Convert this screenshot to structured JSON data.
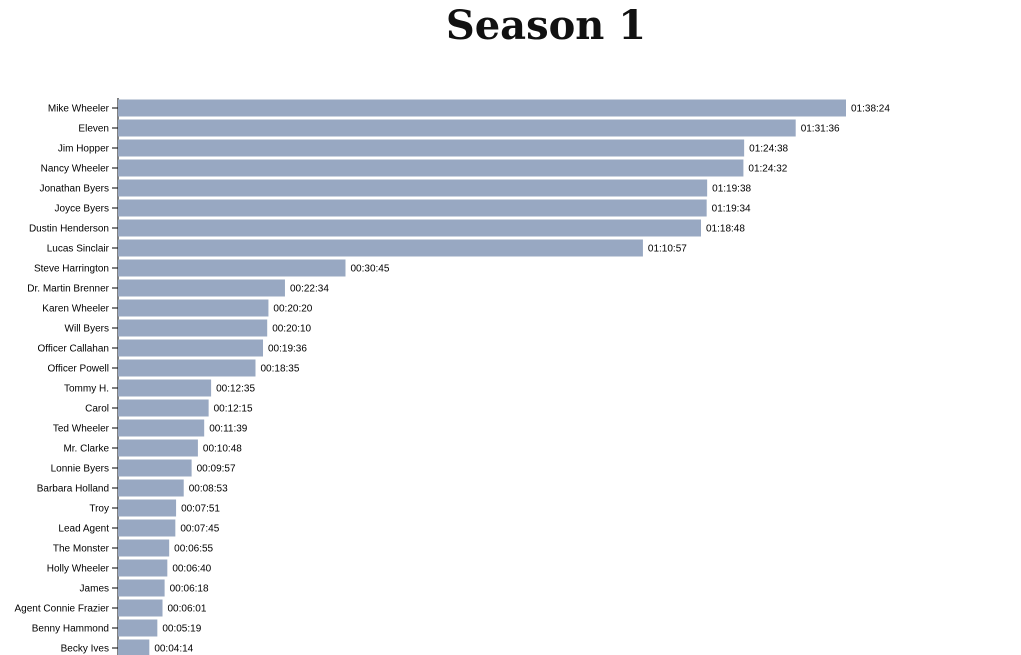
{
  "colors": {
    "bar": "#98a8c2",
    "axis": "#000000"
  },
  "chart_data": {
    "type": "bar",
    "orientation": "horizontal",
    "title": "Season 1",
    "value_unit": "hh:mm:ss",
    "categories": [
      "Mike Wheeler",
      "Eleven",
      "Jim Hopper",
      "Nancy Wheeler",
      "Jonathan Byers",
      "Joyce Byers",
      "Dustin Henderson",
      "Lucas Sinclair",
      "Steve Harrington",
      "Dr. Martin Brenner",
      "Karen Wheeler",
      "Will Byers",
      "Officer Callahan",
      "Officer Powell",
      "Tommy H.",
      "Carol",
      "Ted Wheeler",
      "Mr. Clarke",
      "Lonnie Byers",
      "Barbara Holland",
      "Troy",
      "Lead Agent",
      "The Monster",
      "Holly Wheeler",
      "James",
      "Agent Connie Frazier",
      "Benny Hammond",
      "Becky Ives"
    ],
    "values": [
      "01:38:24",
      "01:31:36",
      "01:24:38",
      "01:24:32",
      "01:19:38",
      "01:19:34",
      "01:18:48",
      "01:10:57",
      "00:30:45",
      "00:22:34",
      "00:20:20",
      "00:20:10",
      "00:19:36",
      "00:18:35",
      "00:12:35",
      "00:12:15",
      "00:11:39",
      "00:10:48",
      "00:09:57",
      "00:08:53",
      "00:07:51",
      "00:07:45",
      "00:06:55",
      "00:06:40",
      "00:06:18",
      "00:06:01",
      "00:05:19",
      "00:04:14"
    ],
    "xlim_seconds": [
      0,
      5904
    ],
    "grid": false,
    "legend": "none"
  }
}
